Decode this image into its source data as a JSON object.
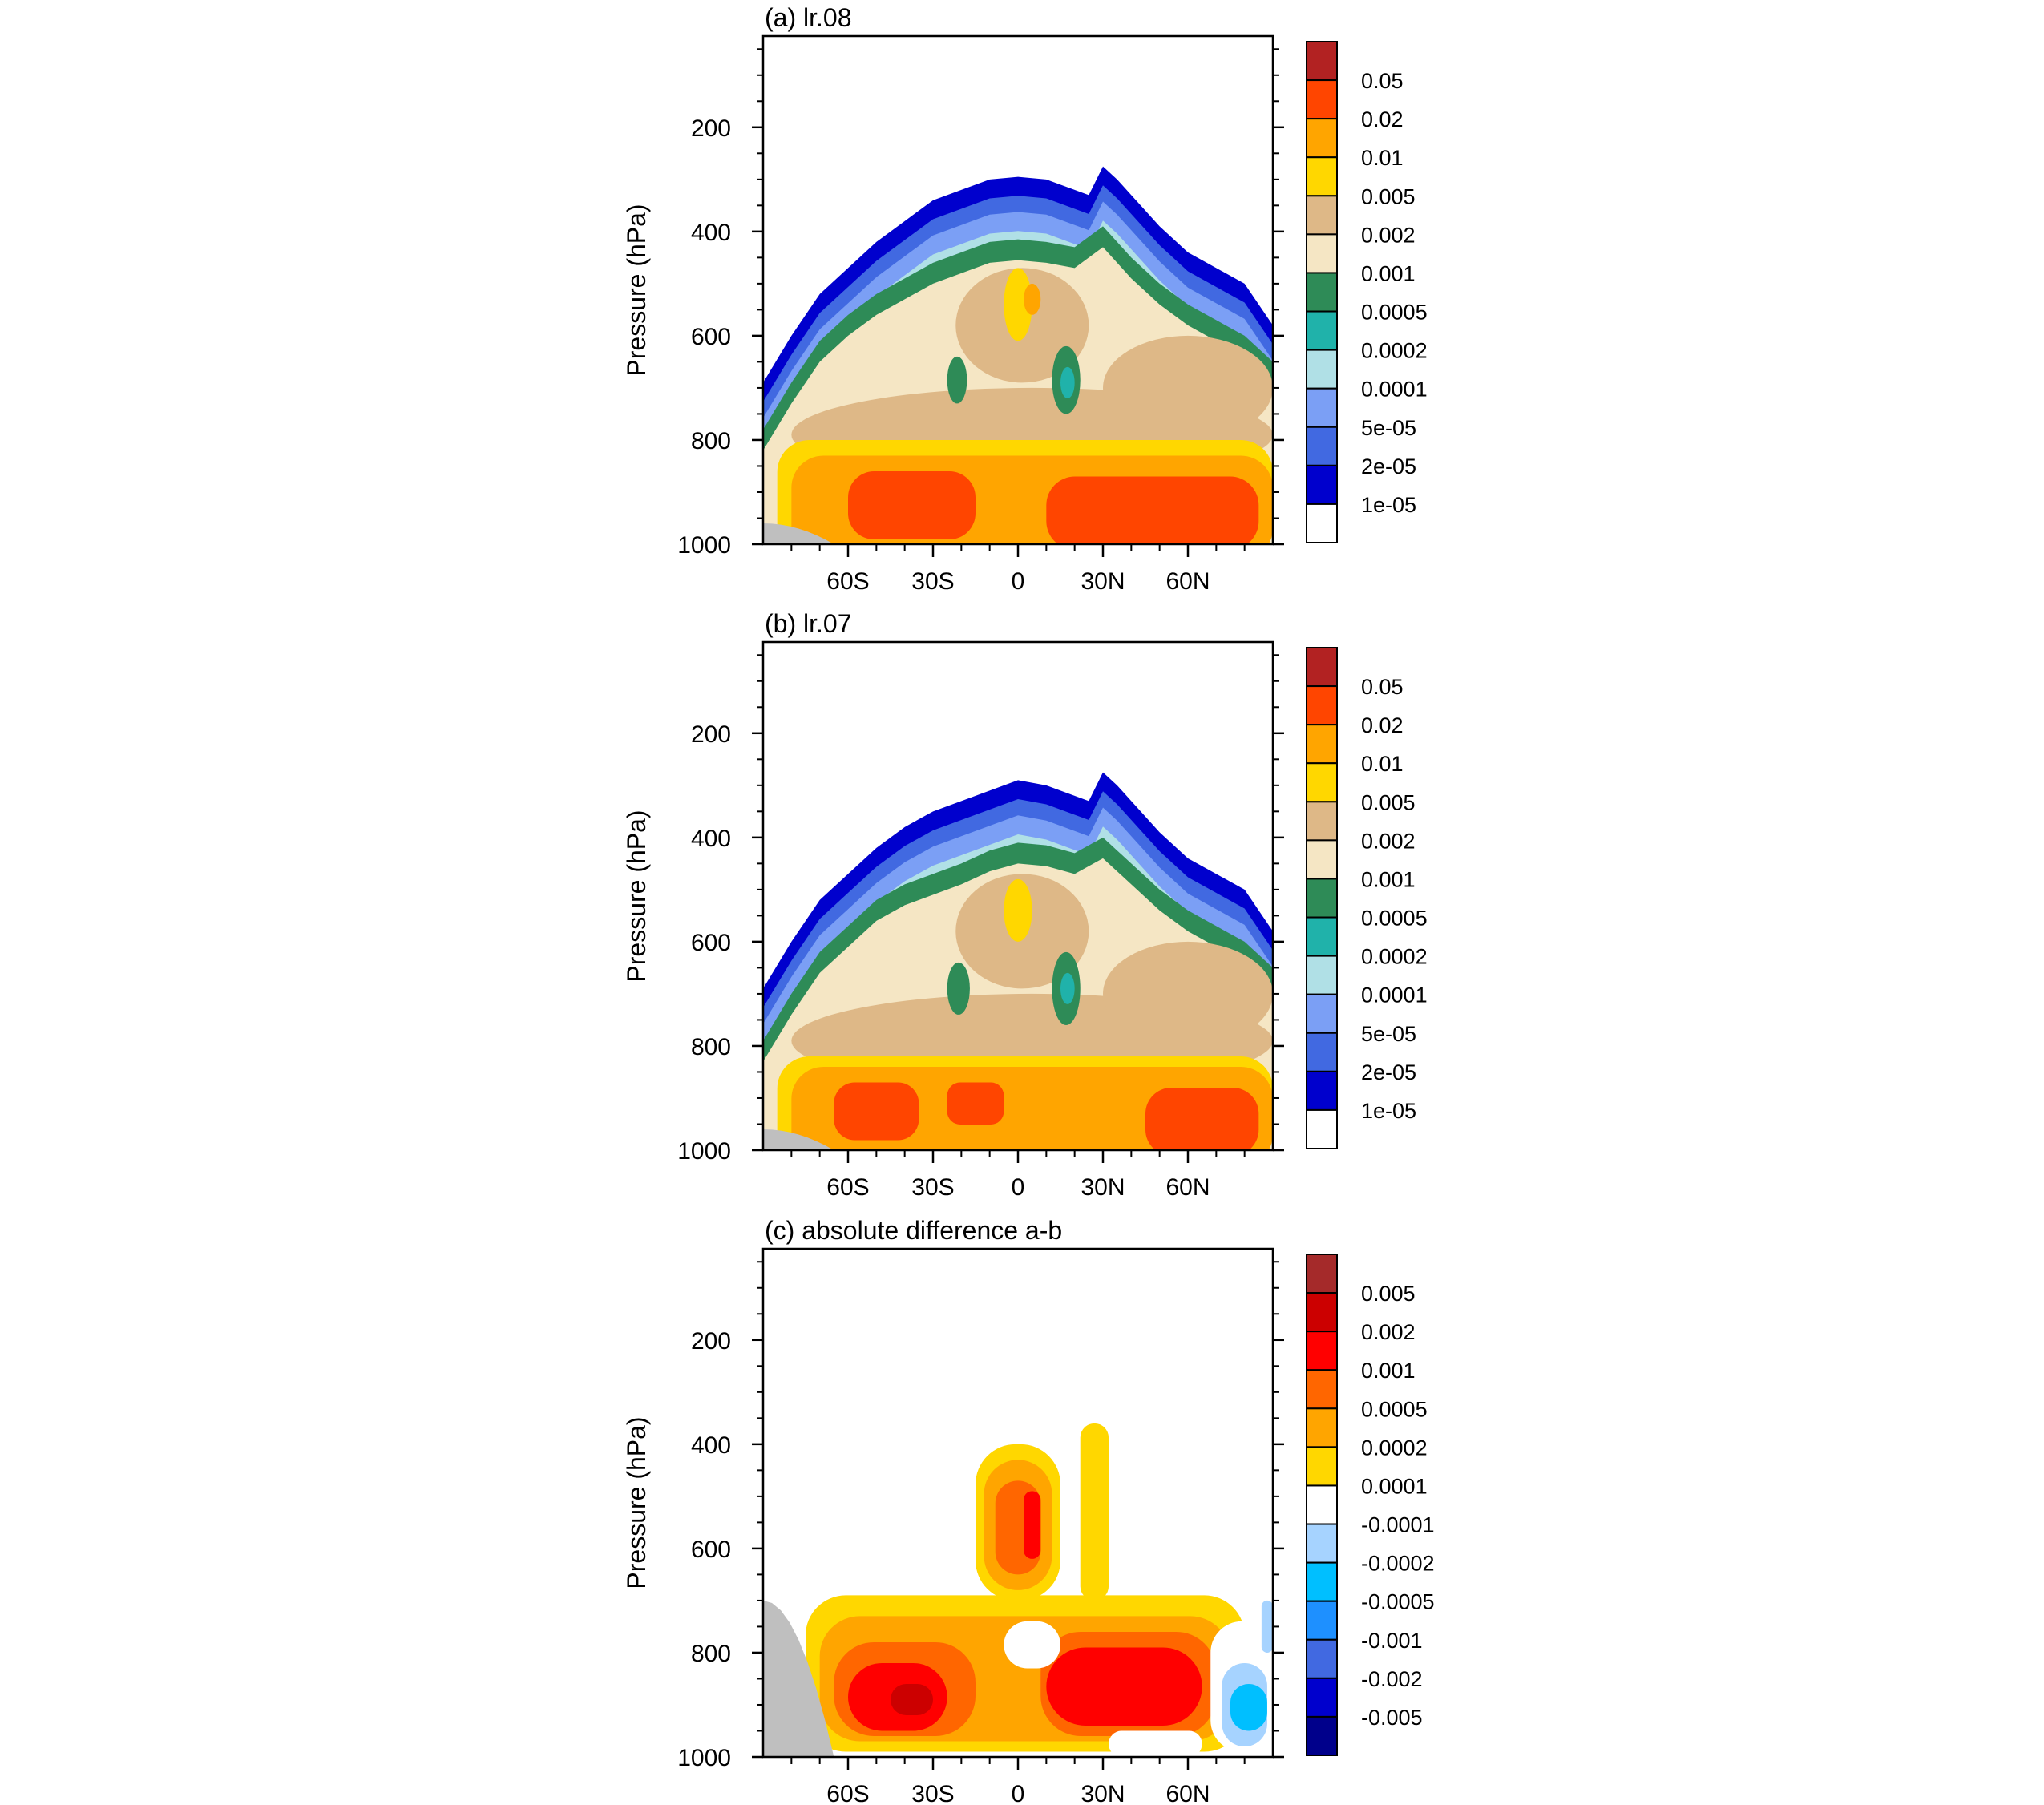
{
  "chart_data": [
    {
      "type": "heatmap",
      "title": "(a) lr.08",
      "xlabel": "",
      "ylabel": "Pressure (hPa)",
      "x_ticks": [
        "60S",
        "30S",
        "0",
        "30N",
        "60N"
      ],
      "x_tick_values": [
        -60,
        -30,
        0,
        30,
        60
      ],
      "xlim": [
        -90,
        90
      ],
      "y_ticks": [
        "200",
        "400",
        "600",
        "800",
        "1000"
      ],
      "y_tick_values": [
        200,
        400,
        600,
        800,
        1000
      ],
      "ylim": [
        1000,
        25
      ],
      "colorbar": {
        "labels": [
          "0.05",
          "0.02",
          "0.01",
          "0.005",
          "0.002",
          "0.001",
          "0.0005",
          "0.0002",
          "0.0001",
          "5e-05",
          "2e-05",
          "1e-05"
        ],
        "colors": [
          "#b22222",
          "#ff4500",
          "#ffa500",
          "#ffd700",
          "#deb887",
          "#f5e6c4",
          "#2e8b57",
          "#20b2aa",
          "#b0e0e6",
          "#7b9ff5",
          "#4169e1",
          "#0000cd",
          "#ffffff"
        ]
      },
      "field": {
        "cloud_top": [
          [
            -90,
            690
          ],
          [
            -80,
            600
          ],
          [
            -70,
            520
          ],
          [
            -60,
            470
          ],
          [
            -50,
            420
          ],
          [
            -40,
            380
          ],
          [
            -30,
            340
          ],
          [
            -20,
            320
          ],
          [
            -10,
            300
          ],
          [
            0,
            295
          ],
          [
            10,
            300
          ],
          [
            20,
            320
          ],
          [
            25,
            330
          ],
          [
            30,
            275
          ],
          [
            35,
            300
          ],
          [
            40,
            330
          ],
          [
            50,
            390
          ],
          [
            60,
            440
          ],
          [
            70,
            470
          ],
          [
            80,
            500
          ],
          [
            90,
            580
          ]
        ],
        "band_thickness_hpa": [
          14,
          12,
          14,
          16,
          18
        ],
        "green_top": [
          [
            -90,
            780
          ],
          [
            -80,
            690
          ],
          [
            -70,
            610
          ],
          [
            -60,
            560
          ],
          [
            -50,
            520
          ],
          [
            -40,
            490
          ],
          [
            -30,
            460
          ],
          [
            -20,
            440
          ],
          [
            -10,
            420
          ],
          [
            0,
            415
          ],
          [
            10,
            420
          ],
          [
            20,
            430
          ],
          [
            30,
            390
          ],
          [
            40,
            450
          ],
          [
            50,
            500
          ],
          [
            60,
            540
          ],
          [
            70,
            570
          ],
          [
            80,
            600
          ],
          [
            90,
            650
          ]
        ],
        "low_level_bands": [
          {
            "level": "0.005",
            "lat": [
              -85,
              90
            ],
            "p": [
              800,
              1000
            ]
          },
          {
            "level": "0.01",
            "lat": [
              -80,
              90
            ],
            "p": [
              830,
              1000
            ]
          },
          {
            "level": "0.02",
            "lat": [
              -60,
              -15
            ],
            "p": [
              860,
              960
            ]
          },
          {
            "level": "0.02",
            "lat": [
              10,
              85
            ],
            "p": [
              870,
              980
            ]
          }
        ],
        "blobs": [
          {
            "level": "0.005",
            "lat": [
              -5,
              5
            ],
            "p": [
              470,
              610
            ]
          },
          {
            "level": "0.01",
            "lat": [
              2,
              8
            ],
            "p": [
              500,
              560
            ]
          },
          {
            "level": "0.0005",
            "lat": [
              -25,
              -18
            ],
            "p": [
              640,
              730
            ]
          },
          {
            "level": "0.0005",
            "lat": [
              12,
              22
            ],
            "p": [
              620,
              750
            ]
          },
          {
            "level": "0.0002",
            "lat": [
              15,
              20
            ],
            "p": [
              660,
              720
            ]
          }
        ],
        "missing": {
          "lat": [
            -90,
            -65
          ],
          "p": [
            960,
            1000
          ]
        }
      }
    },
    {
      "type": "heatmap",
      "title": "(b) lr.07",
      "xlabel": "",
      "ylabel": "Pressure (hPa)",
      "x_ticks": [
        "60S",
        "30S",
        "0",
        "30N",
        "60N"
      ],
      "x_tick_values": [
        -60,
        -30,
        0,
        30,
        60
      ],
      "xlim": [
        -90,
        90
      ],
      "y_ticks": [
        "200",
        "400",
        "600",
        "800",
        "1000"
      ],
      "y_tick_values": [
        200,
        400,
        600,
        800,
        1000
      ],
      "ylim": [
        1000,
        25
      ],
      "colorbar": {
        "labels": [
          "0.05",
          "0.02",
          "0.01",
          "0.005",
          "0.002",
          "0.001",
          "0.0005",
          "0.0002",
          "0.0001",
          "5e-05",
          "2e-05",
          "1e-05"
        ],
        "colors": [
          "#b22222",
          "#ff4500",
          "#ffa500",
          "#ffd700",
          "#deb887",
          "#f5e6c4",
          "#2e8b57",
          "#20b2aa",
          "#b0e0e6",
          "#7b9ff5",
          "#4169e1",
          "#0000cd",
          "#ffffff"
        ]
      },
      "field": {
        "cloud_top": [
          [
            -90,
            690
          ],
          [
            -80,
            600
          ],
          [
            -70,
            520
          ],
          [
            -60,
            470
          ],
          [
            -50,
            420
          ],
          [
            -40,
            380
          ],
          [
            -30,
            350
          ],
          [
            -20,
            330
          ],
          [
            -10,
            310
          ],
          [
            0,
            290
          ],
          [
            10,
            300
          ],
          [
            20,
            320
          ],
          [
            25,
            330
          ],
          [
            30,
            275
          ],
          [
            35,
            300
          ],
          [
            40,
            330
          ],
          [
            50,
            390
          ],
          [
            60,
            440
          ],
          [
            70,
            470
          ],
          [
            80,
            500
          ],
          [
            90,
            580
          ]
        ],
        "band_thickness_hpa": [
          14,
          12,
          14,
          16,
          18
        ],
        "green_top": [
          [
            -90,
            790
          ],
          [
            -80,
            700
          ],
          [
            -70,
            620
          ],
          [
            -60,
            570
          ],
          [
            -50,
            520
          ],
          [
            -40,
            490
          ],
          [
            -30,
            470
          ],
          [
            -20,
            450
          ],
          [
            -10,
            425
          ],
          [
            0,
            410
          ],
          [
            10,
            415
          ],
          [
            20,
            430
          ],
          [
            30,
            400
          ],
          [
            40,
            450
          ],
          [
            50,
            500
          ],
          [
            60,
            540
          ],
          [
            70,
            570
          ],
          [
            80,
            600
          ],
          [
            90,
            650
          ]
        ],
        "low_level_bands": [
          {
            "level": "0.005",
            "lat": [
              -85,
              90
            ],
            "p": [
              820,
              1000
            ]
          },
          {
            "level": "0.01",
            "lat": [
              -80,
              90
            ],
            "p": [
              840,
              1000
            ]
          },
          {
            "level": "0.02",
            "lat": [
              -65,
              -35
            ],
            "p": [
              870,
              950
            ]
          },
          {
            "level": "0.02",
            "lat": [
              -25,
              -5
            ],
            "p": [
              870,
              920
            ]
          },
          {
            "level": "0.02",
            "lat": [
              45,
              85
            ],
            "p": [
              880,
              980
            ]
          }
        ],
        "blobs": [
          {
            "level": "0.005",
            "lat": [
              -5,
              5
            ],
            "p": [
              480,
              600
            ]
          },
          {
            "level": "0.0005",
            "lat": [
              -25,
              -17
            ],
            "p": [
              640,
              740
            ]
          },
          {
            "level": "0.0005",
            "lat": [
              12,
              22
            ],
            "p": [
              620,
              760
            ]
          },
          {
            "level": "0.0002",
            "lat": [
              15,
              20
            ],
            "p": [
              660,
              720
            ]
          }
        ],
        "missing": {
          "lat": [
            -90,
            -65
          ],
          "p": [
            960,
            1000
          ]
        }
      }
    },
    {
      "type": "heatmap",
      "title": "(c) absolute difference a-b",
      "xlabel": "",
      "ylabel": "Pressure (hPa)",
      "x_ticks": [
        "60S",
        "30S",
        "0",
        "30N",
        "60N"
      ],
      "x_tick_values": [
        -60,
        -30,
        0,
        30,
        60
      ],
      "xlim": [
        -90,
        90
      ],
      "y_ticks": [
        "200",
        "400",
        "600",
        "800",
        "1000"
      ],
      "y_tick_values": [
        200,
        400,
        600,
        800,
        1000
      ],
      "ylim": [
        1000,
        25
      ],
      "colorbar": {
        "labels": [
          "0.005",
          "0.002",
          "0.001",
          "0.0005",
          "0.0002",
          "0.0001",
          "-0.0001",
          "-0.0002",
          "-0.0005",
          "-0.001",
          "-0.002",
          "-0.005"
        ],
        "colors": [
          "#a52a2a",
          "#cc0000",
          "#ff0000",
          "#ff6600",
          "#ffa500",
          "#ffd700",
          "#ffffff",
          "#a6d3ff",
          "#00bfff",
          "#1e90ff",
          "#4169e1",
          "#0000cd",
          "#00008b"
        ]
      },
      "field": {
        "regions": [
          {
            "level": "0.0001",
            "lat": [
              -75,
              80
            ],
            "p": [
              690,
              990
            ]
          },
          {
            "level": "0.0001",
            "lat": [
              -15,
              15
            ],
            "p": [
              400,
              700
            ]
          },
          {
            "level": "0.0001",
            "lat": [
              22,
              32
            ],
            "p": [
              360,
              700
            ]
          },
          {
            "level": "0.0002",
            "lat": [
              -70,
              75
            ],
            "p": [
              730,
              970
            ]
          },
          {
            "level": "0.0002",
            "lat": [
              -12,
              12
            ],
            "p": [
              430,
              680
            ]
          },
          {
            "level": "0.0005",
            "lat": [
              -65,
              -15
            ],
            "p": [
              780,
              960
            ]
          },
          {
            "level": "0.0005",
            "lat": [
              8,
              70
            ],
            "p": [
              760,
              960
            ]
          },
          {
            "level": "0.0005",
            "lat": [
              -8,
              8
            ],
            "p": [
              470,
              650
            ]
          },
          {
            "level": "0.001",
            "lat": [
              -60,
              -25
            ],
            "p": [
              820,
              950
            ]
          },
          {
            "level": "0.001",
            "lat": [
              10,
              65
            ],
            "p": [
              790,
              940
            ]
          },
          {
            "level": "0.001",
            "lat": [
              2,
              8
            ],
            "p": [
              490,
              620
            ]
          },
          {
            "level": "0.002",
            "lat": [
              -45,
              -30
            ],
            "p": [
              860,
              920
            ]
          },
          {
            "level": "-0.0001",
            "lat": [
              -5,
              15
            ],
            "p": [
              740,
              830
            ]
          },
          {
            "level": "-0.0001",
            "lat": [
              32,
              65
            ],
            "p": [
              950,
              1000
            ]
          },
          {
            "level": "-0.0001",
            "lat": [
              68,
              90
            ],
            "p": [
              740,
              990
            ]
          },
          {
            "level": "-0.0002",
            "lat": [
              72,
              88
            ],
            "p": [
              820,
              980
            ]
          },
          {
            "level": "-0.0005",
            "lat": [
              75,
              88
            ],
            "p": [
              860,
              950
            ]
          },
          {
            "level": "-0.0002",
            "lat": [
              86,
              90
            ],
            "p": [
              700,
              800
            ]
          }
        ],
        "missing": {
          "lat": [
            -90,
            -65
          ],
          "p": [
            700,
            1000
          ]
        }
      }
    }
  ]
}
